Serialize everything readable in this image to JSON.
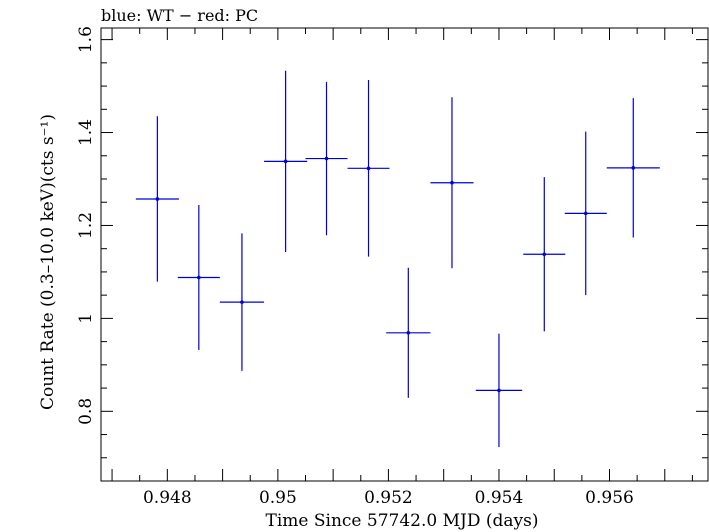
{
  "chart_data": {
    "type": "scatter",
    "title": "blue: WT − red: PC",
    "xlabel": "Time Since 57742.0 MJD (days)",
    "ylabel": "Count Rate (0.3–10.0 keV)(cts s⁻¹)",
    "xlim": [
      0.9468,
      0.9578
    ],
    "ylim": [
      0.65,
      1.625
    ],
    "x_ticks": [
      {
        "value": 0.948,
        "label": "0.948"
      },
      {
        "value": 0.95,
        "label": "0.95"
      },
      {
        "value": 0.952,
        "label": "0.952"
      },
      {
        "value": 0.954,
        "label": "0.954"
      },
      {
        "value": 0.956,
        "label": "0.956"
      }
    ],
    "y_ticks": [
      {
        "value": 0.8,
        "label": "0.8"
      },
      {
        "value": 1.0,
        "label": "1"
      },
      {
        "value": 1.2,
        "label": "1.2"
      },
      {
        "value": 1.4,
        "label": "1.4"
      },
      {
        "value": 1.6,
        "label": "1.6"
      }
    ],
    "grid": false,
    "series": [
      {
        "color": "#0000dd",
        "points": [
          {
            "x": 0.94782,
            "xerr": 0.00039,
            "y": 1.257,
            "yerr": 0.178
          },
          {
            "x": 0.94857,
            "xerr": 0.00038,
            "y": 1.088,
            "yerr": 0.156
          },
          {
            "x": 0.94935,
            "xerr": 0.0004,
            "y": 1.035,
            "yerr": 0.148
          },
          {
            "x": 0.95014,
            "xerr": 0.00039,
            "y": 1.338,
            "yerr": 0.195
          },
          {
            "x": 0.95088,
            "xerr": 0.00038,
            "y": 1.344,
            "yerr": 0.165
          },
          {
            "x": 0.95164,
            "xerr": 0.00038,
            "y": 1.323,
            "yerr": 0.19
          },
          {
            "x": 0.95236,
            "xerr": 0.0004,
            "y": 0.969,
            "yerr": 0.14
          },
          {
            "x": 0.95315,
            "xerr": 0.00039,
            "y": 1.292,
            "yerr": 0.184
          },
          {
            "x": 0.954,
            "xerr": 0.00042,
            "y": 0.845,
            "yerr": 0.122
          },
          {
            "x": 0.95482,
            "xerr": 0.00038,
            "y": 1.138,
            "yerr": 0.166
          },
          {
            "x": 0.95557,
            "xerr": 0.00038,
            "y": 1.226,
            "yerr": 0.176
          },
          {
            "x": 0.95643,
            "xerr": 0.00048,
            "y": 1.324,
            "yerr": 0.15
          }
        ]
      }
    ]
  }
}
